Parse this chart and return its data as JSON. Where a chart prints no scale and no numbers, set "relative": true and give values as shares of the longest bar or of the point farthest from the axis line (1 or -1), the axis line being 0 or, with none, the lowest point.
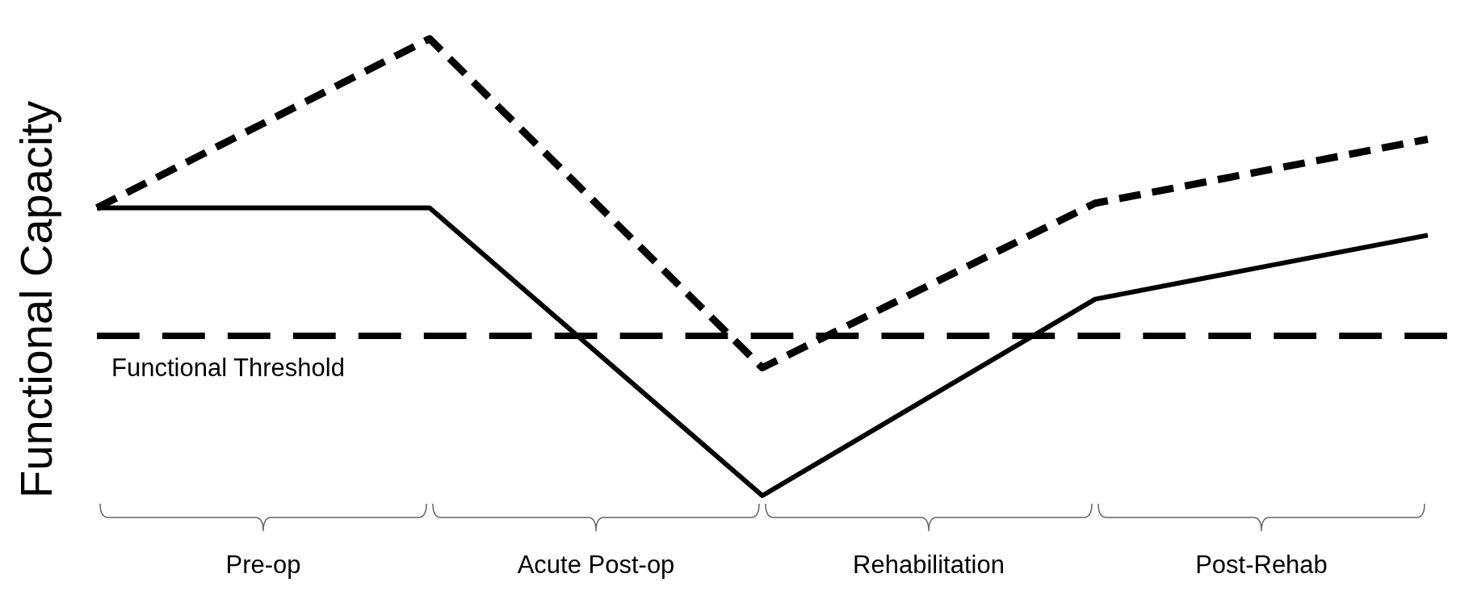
{
  "chart_data": {
    "type": "line",
    "relative": true,
    "ylabel": "Functional Capacity",
    "categories": [
      null,
      null,
      null,
      null,
      null
    ],
    "series": [
      {
        "values": [
          0.63,
          1,
          0.28,
          0.64,
          0.78
        ],
        "color": "#000000",
        "line_style": "dashed"
      },
      {
        "values": [
          0.63,
          0.63,
          0,
          0.43,
          0.57
        ],
        "color": "#000000",
        "line_style": "solid"
      }
    ],
    "ref_lines": [
      {
        "axis": "y",
        "value": 0.35,
        "label": "Functional Threshold",
        "color": "#000000",
        "line_style": "dashed"
      }
    ],
    "annotations": [
      "Pre-op",
      "Acute Post-op",
      "Rehabilitation",
      "Post-Rehab"
    ]
  }
}
